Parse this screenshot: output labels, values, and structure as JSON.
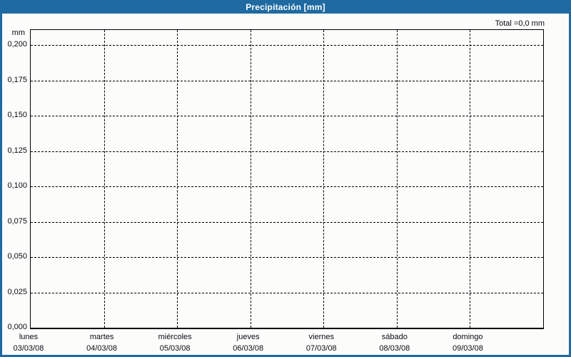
{
  "window": {
    "title": "Precipitación [mm]"
  },
  "colors": {
    "titlebar": "#1e6aa1",
    "frame_border": "#1e6aa1",
    "plot_background": "#fcfdfa",
    "grid": "#000000",
    "text": "#0a0a14",
    "title_text": "#ffffff",
    "bar_default": "#2066a8"
  },
  "chart_data": {
    "type": "bar",
    "title": "Precipitación [mm]",
    "total_label": "Total =0,0 mm",
    "total_mm": 0.0,
    "unit": "mm",
    "ylabel": "mm",
    "ylim": [
      0,
      0.2107
    ],
    "ytick_step": 0.025,
    "grid": true,
    "legend": "none",
    "yticks": [
      {
        "value": 0.2,
        "label": "0,200"
      },
      {
        "value": 0.175,
        "label": "0,175"
      },
      {
        "value": 0.15,
        "label": "0,150"
      },
      {
        "value": 0.125,
        "label": "0,125"
      },
      {
        "value": 0.1,
        "label": "0,100"
      },
      {
        "value": 0.075,
        "label": "0,075"
      },
      {
        "value": 0.05,
        "label": "0,050"
      },
      {
        "value": 0.025,
        "label": "0,025"
      },
      {
        "value": 0.0,
        "label": "0,000"
      }
    ],
    "categories": [
      {
        "day": "lunes",
        "date": "03/03/08"
      },
      {
        "day": "martes",
        "date": "04/03/08"
      },
      {
        "day": "miércoles",
        "date": "05/03/08"
      },
      {
        "day": "jueves",
        "date": "06/03/08"
      },
      {
        "day": "viernes",
        "date": "07/03/08"
      },
      {
        "day": "sábado",
        "date": "08/03/08"
      },
      {
        "day": "domingo",
        "date": "09/03/08"
      }
    ],
    "series": [
      {
        "name": "Precipitación",
        "values": [
          0,
          0,
          0,
          0,
          0,
          0,
          0
        ]
      }
    ]
  }
}
